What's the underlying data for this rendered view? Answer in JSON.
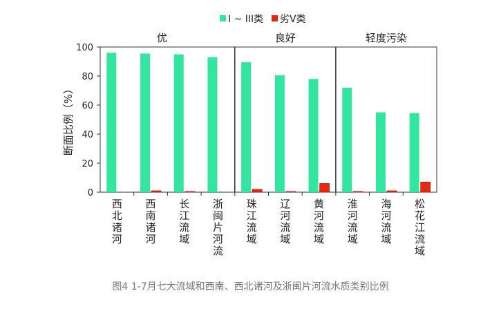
{
  "chart_data": {
    "type": "bar",
    "categories": [
      "西北诸河",
      "西南诸河",
      "长江流域",
      "浙闽片河流",
      "珠江流域",
      "辽河流域",
      "黄河流域",
      "淮河流域",
      "海河流域",
      "松花江流域"
    ],
    "series": [
      {
        "name": "I ~ III类",
        "color": "#33e6a0",
        "values": [
          96,
          95.5,
          95,
          93,
          89.5,
          80.5,
          78,
          72,
          55,
          54.5
        ]
      },
      {
        "name": "劣V类",
        "color": "#e8270f",
        "values": [
          0,
          1,
          0.5,
          0,
          2,
          0.5,
          6,
          0.5,
          1,
          7
        ]
      }
    ],
    "groups": [
      {
        "label": "优",
        "categories": [
          "西北诸河",
          "西南诸河",
          "长江流域",
          "浙闽片河流"
        ]
      },
      {
        "label": "良好",
        "categories": [
          "珠江流域",
          "辽河流域",
          "黄河流域"
        ]
      },
      {
        "label": "轻度污染",
        "categories": [
          "淮河流域",
          "海河流域",
          "松花江流域"
        ]
      }
    ],
    "ylabel": "断面比例（%）",
    "xlabel": "",
    "ylim": [
      0,
      100
    ],
    "yticks": [
      0,
      20,
      40,
      60,
      80,
      100
    ],
    "grid": false,
    "legend_position": "top"
  },
  "caption": "图4 1-7月七大流域和西南、西北诸河及浙闽片河流水质类别比例"
}
